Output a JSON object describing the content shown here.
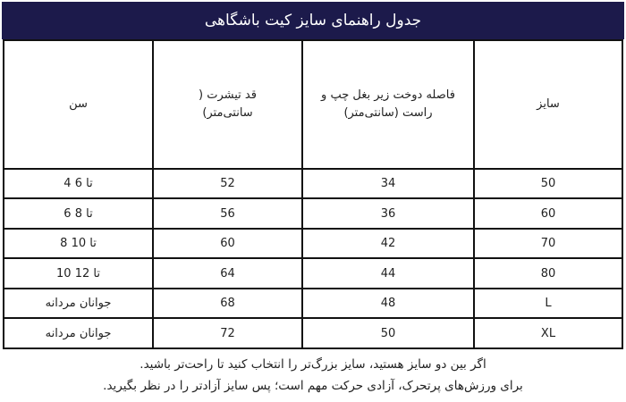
{
  "title": "جدول راهنمای سایز کیت باشگاهی",
  "headers": [
    "سایز",
    "فاصله دوخت زیر بغل چپ و راست (سانتی‌متر)",
    "قد تیشرت ( سانتی‌متر)",
    "سن"
  ],
  "rows": [
    {
      "size": "50",
      "width": "34",
      "length": "52",
      "age": "4 تا 6"
    },
    {
      "size": "60",
      "width": "36",
      "length": "56",
      "age": "6 تا 8"
    },
    {
      "size": "70",
      "width": "42",
      "length": "60",
      "age": "8 تا 10"
    },
    {
      "size": "80",
      "width": "44",
      "length": "64",
      "age": "10 تا 12"
    },
    {
      "size": "L",
      "width": "48",
      "length": "68",
      "age": "جوانان مردانه"
    },
    {
      "size": "XL",
      "width": "50",
      "length": "72",
      "age": "جوانان مردانه"
    }
  ],
  "notes": [
    "اگر بین دو سایز هستید، سایز بزرگ‌تر را انتخاب کنید تا راحت‌تر باشید.",
    "برای ورزش‌های پرتحرک، آزادی حرکت مهم است؛ پس سایز آزادتر را در نظر بگیرید."
  ],
  "colors": {
    "header_bg": "#1c1a4b"
  }
}
